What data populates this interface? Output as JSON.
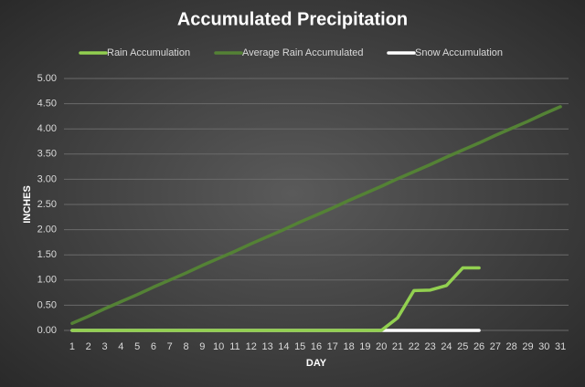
{
  "chart_data": {
    "type": "line",
    "title": "Accumulated Precipitation",
    "x_label": "DAY",
    "y_label": "INCHES",
    "categories": [
      "1",
      "2",
      "3",
      "4",
      "5",
      "6",
      "7",
      "8",
      "9",
      "10",
      "11",
      "12",
      "13",
      "14",
      "15",
      "16",
      "17",
      "18",
      "19",
      "20",
      "21",
      "22",
      "23",
      "24",
      "25",
      "26",
      "27",
      "28",
      "29",
      "30",
      "31"
    ],
    "series": [
      {
        "name": "Snow Accumulation",
        "color": "#ffffff",
        "values": [
          0,
          0,
          0,
          0,
          0,
          0,
          0,
          0,
          0,
          0,
          0,
          0,
          0,
          0,
          0,
          0,
          0,
          0,
          0,
          0,
          0,
          0,
          0,
          0,
          0,
          0,
          null,
          null,
          null,
          null,
          null
        ]
      },
      {
        "name": "Average Rain Accumulated",
        "color": "#548235",
        "values": [
          0.14,
          0.28,
          0.43,
          0.57,
          0.71,
          0.86,
          1.0,
          1.14,
          1.29,
          1.43,
          1.57,
          1.72,
          1.86,
          2.0,
          2.15,
          2.29,
          2.43,
          2.58,
          2.72,
          2.86,
          3.01,
          3.15,
          3.29,
          3.44,
          3.58,
          3.72,
          3.87,
          4.01,
          4.15,
          4.3,
          4.44
        ]
      },
      {
        "name": "Rain Accumulation",
        "color": "#92d050",
        "values": [
          0,
          0,
          0,
          0,
          0,
          0,
          0,
          0,
          0,
          0,
          0,
          0,
          0,
          0,
          0,
          0,
          0,
          0,
          0,
          0,
          0.25,
          0.79,
          0.8,
          0.89,
          1.24,
          1.24,
          null,
          null,
          null,
          null,
          null
        ]
      }
    ],
    "legend_order": [
      2,
      1,
      0
    ],
    "ylim": [
      0,
      5
    ],
    "yticks": [
      {
        "value": 0,
        "label": "0.00"
      },
      {
        "value": 0.5,
        "label": "0.50"
      },
      {
        "value": 1,
        "label": "1.00"
      },
      {
        "value": 1.5,
        "label": "1.50"
      },
      {
        "value": 2,
        "label": "2.00"
      },
      {
        "value": 2.5,
        "label": "2.50"
      },
      {
        "value": 3,
        "label": "3.00"
      },
      {
        "value": 3.5,
        "label": "3.50"
      },
      {
        "value": 4,
        "label": "4.00"
      },
      {
        "value": 4.5,
        "label": "4.50"
      },
      {
        "value": 5,
        "label": "5.00"
      }
    ],
    "grid": true
  }
}
